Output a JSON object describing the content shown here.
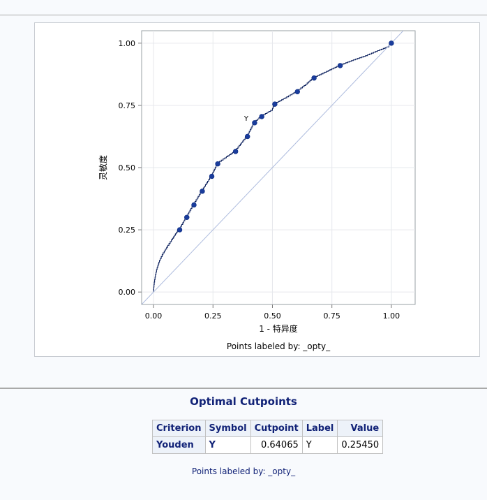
{
  "chart_data": {
    "type": "line",
    "xlabel": "1 - 特异度",
    "ylabel": "灵敏度",
    "footnote": "Points labeled by: _opty_",
    "xlim": [
      -0.05,
      1.1
    ],
    "ylim": [
      -0.05,
      1.05
    ],
    "x_ticks": [
      "0.00",
      "0.25",
      "0.50",
      "0.75",
      "1.00"
    ],
    "y_ticks": [
      "0.00",
      "0.25",
      "0.50",
      "0.75",
      "1.00"
    ],
    "grid": true,
    "series": [
      {
        "kind": "roc-step",
        "color": "#0a1f5c",
        "x": [
          0.0,
          0.003,
          0.008,
          0.015,
          0.025,
          0.04,
          0.06,
          0.08,
          0.1,
          0.11,
          0.14,
          0.17,
          0.205,
          0.245,
          0.27,
          0.3,
          0.345,
          0.395,
          0.425,
          0.455,
          0.5,
          0.51,
          0.56,
          0.605,
          0.64,
          0.675,
          0.72,
          0.785,
          0.84,
          0.9,
          0.95,
          0.99,
          1.0
        ],
        "y": [
          0.0,
          0.03,
          0.06,
          0.09,
          0.12,
          0.15,
          0.18,
          0.21,
          0.24,
          0.25,
          0.3,
          0.35,
          0.405,
          0.465,
          0.515,
          0.535,
          0.565,
          0.625,
          0.68,
          0.705,
          0.73,
          0.755,
          0.78,
          0.805,
          0.83,
          0.86,
          0.88,
          0.91,
          0.93,
          0.95,
          0.97,
          0.985,
          1.0
        ]
      },
      {
        "kind": "reference",
        "color": "#aebcde",
        "x": [
          -0.05,
          1.05
        ],
        "y": [
          -0.05,
          1.05
        ]
      }
    ],
    "points": {
      "color": "#1a3c9c",
      "x": [
        0.11,
        0.14,
        0.17,
        0.205,
        0.245,
        0.27,
        0.345,
        0.395,
        0.425,
        0.455,
        0.51,
        0.605,
        0.675,
        0.785,
        1.0
      ],
      "y": [
        0.25,
        0.3,
        0.35,
        0.405,
        0.465,
        0.515,
        0.565,
        0.625,
        0.68,
        0.705,
        0.755,
        0.805,
        0.86,
        0.91,
        1.0
      ]
    },
    "annotation": {
      "text": "Y",
      "x": 0.425,
      "y": 0.68
    }
  },
  "cutpoints": {
    "title": "Optimal Cutpoints",
    "headers": [
      "Criterion",
      "Symbol",
      "Cutpoint",
      "Label",
      "Value"
    ],
    "row": [
      "Youden",
      "Y",
      "0.64065",
      "Y",
      "0.25450"
    ],
    "footnote": "Points labeled by: _opty_"
  }
}
